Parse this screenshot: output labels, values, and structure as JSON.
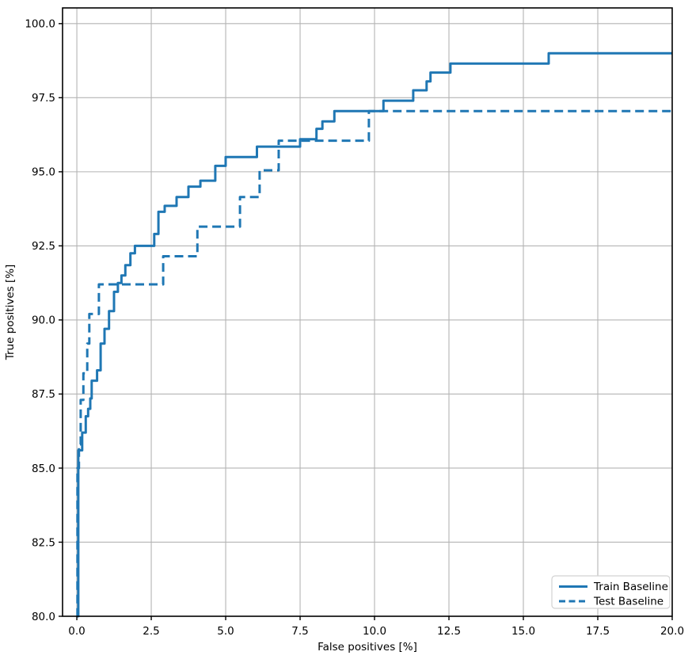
{
  "chart_data": {
    "type": "line",
    "subtype": "step-roc",
    "title": "",
    "xlabel": "False positives [%]",
    "ylabel": "True positives [%]",
    "xlim": [
      -0.48,
      20.0
    ],
    "ylim": [
      80.0,
      100.53
    ],
    "grid": true,
    "line_color": "#1f77b4",
    "grid_color": "#b4b4b4",
    "spine_color": "#000000",
    "legend": {
      "position": "lower right"
    },
    "xticks": {
      "values": [
        0,
        2.5,
        5.0,
        7.5,
        10.0,
        12.5,
        15.0,
        17.5,
        20.0
      ],
      "labels": [
        "0.0",
        "2.5",
        "5.0",
        "7.5",
        "10.0",
        "12.5",
        "15.0",
        "17.5",
        "20.0"
      ]
    },
    "yticks": {
      "values": [
        80.0,
        82.5,
        85.0,
        87.5,
        90.0,
        92.5,
        95.0,
        97.5,
        100.0
      ],
      "labels": [
        "80.0",
        "82.5",
        "85.0",
        "87.5",
        "90.0",
        "92.5",
        "95.0",
        "97.5",
        "100.0"
      ]
    },
    "series": [
      {
        "name": "Train Baseline",
        "style": "solid",
        "color": "#1f77b4",
        "start": [
          0.0,
          80.0
        ],
        "end_x": 20.0,
        "steps": [
          [
            0.05,
            85.6
          ],
          [
            0.18,
            86.2
          ],
          [
            0.3,
            86.75
          ],
          [
            0.38,
            87.0
          ],
          [
            0.45,
            87.35
          ],
          [
            0.5,
            87.95
          ],
          [
            0.68,
            88.3
          ],
          [
            0.8,
            89.2
          ],
          [
            0.93,
            89.7
          ],
          [
            1.08,
            90.3
          ],
          [
            1.25,
            90.95
          ],
          [
            1.38,
            91.25
          ],
          [
            1.5,
            91.5
          ],
          [
            1.63,
            91.85
          ],
          [
            1.8,
            92.25
          ],
          [
            1.95,
            92.5
          ],
          [
            2.6,
            92.9
          ],
          [
            2.74,
            93.65
          ],
          [
            2.95,
            93.85
          ],
          [
            3.35,
            94.15
          ],
          [
            3.75,
            94.5
          ],
          [
            4.15,
            94.7
          ],
          [
            4.65,
            95.2
          ],
          [
            5.0,
            95.5
          ],
          [
            6.05,
            95.85
          ],
          [
            7.5,
            96.1
          ],
          [
            8.05,
            96.45
          ],
          [
            8.25,
            96.7
          ],
          [
            8.65,
            97.05
          ],
          [
            10.3,
            97.4
          ],
          [
            11.3,
            97.75
          ],
          [
            11.75,
            98.05
          ],
          [
            11.88,
            98.35
          ],
          [
            12.55,
            98.65
          ],
          [
            15.85,
            99.0
          ]
        ]
      },
      {
        "name": "Test Baseline",
        "style": "dashed",
        "color": "#1f77b4",
        "start": [
          0.0,
          80.0
        ],
        "end_x": 20.0,
        "steps": [
          [
            0.02,
            85.0
          ],
          [
            0.07,
            85.8
          ],
          [
            0.13,
            87.3
          ],
          [
            0.22,
            88.2
          ],
          [
            0.35,
            89.2
          ],
          [
            0.42,
            90.2
          ],
          [
            0.74,
            91.2
          ],
          [
            2.9,
            92.15
          ],
          [
            4.05,
            93.15
          ],
          [
            5.48,
            94.15
          ],
          [
            6.14,
            95.05
          ],
          [
            6.78,
            96.05
          ],
          [
            9.81,
            97.05
          ]
        ]
      }
    ]
  }
}
